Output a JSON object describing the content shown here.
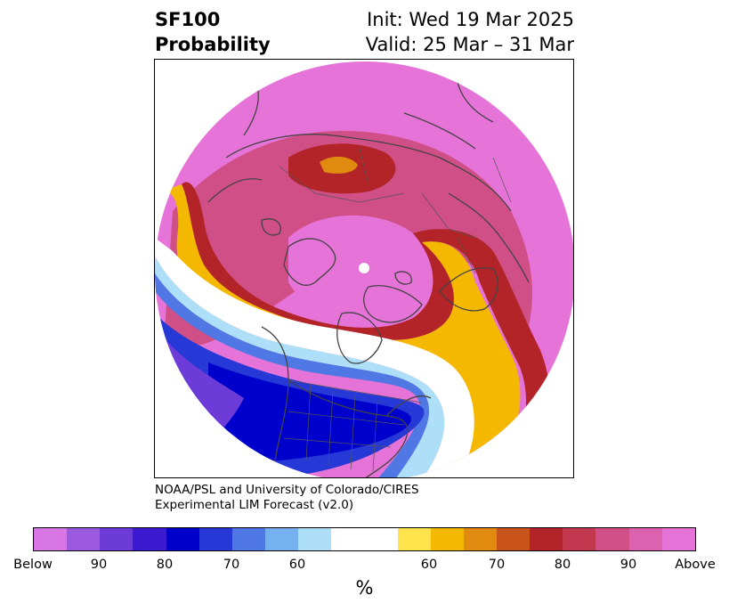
{
  "header": {
    "title_line1": "SF100",
    "title_line2": "Probability",
    "init": "Init: Wed 19 Mar 2025",
    "valid": "Valid: 25 Mar – 31 Mar"
  },
  "credit": {
    "line1": "NOAA/PSL and University of Colorado/CIRES",
    "line2": "Experimental LIM Forecast (v2.0)"
  },
  "colorbar": {
    "colors": [
      "#d876e6",
      "#9b59e0",
      "#6c3bd8",
      "#3b1ad1",
      "#0000cc",
      "#2639d6",
      "#4f78e5",
      "#75b0f0",
      "#ade0f8",
      "#ffffff",
      "#ffffff",
      "#ffe34d",
      "#f5b800",
      "#e08a10",
      "#c8541b",
      "#b22428",
      "#c2384f",
      "#cf4f86",
      "#dc62b0",
      "#e673d8"
    ],
    "tick_labels": [
      "Below",
      "90",
      "80",
      "70",
      "60",
      "60",
      "70",
      "80",
      "90",
      "Above"
    ],
    "unit": "%"
  },
  "map": {
    "projection": "north-polar-stereographic",
    "field_colors": {
      "above_high": "#e673d8",
      "above_mid": "#cf4f86",
      "above_low": "#b22428",
      "near_above": "#e08a10",
      "neutral": "#ffffff",
      "below_low": "#ade0f8",
      "below_mid": "#4f78e5",
      "below_high": "#0000cc",
      "below_max": "#9b59e0"
    }
  }
}
